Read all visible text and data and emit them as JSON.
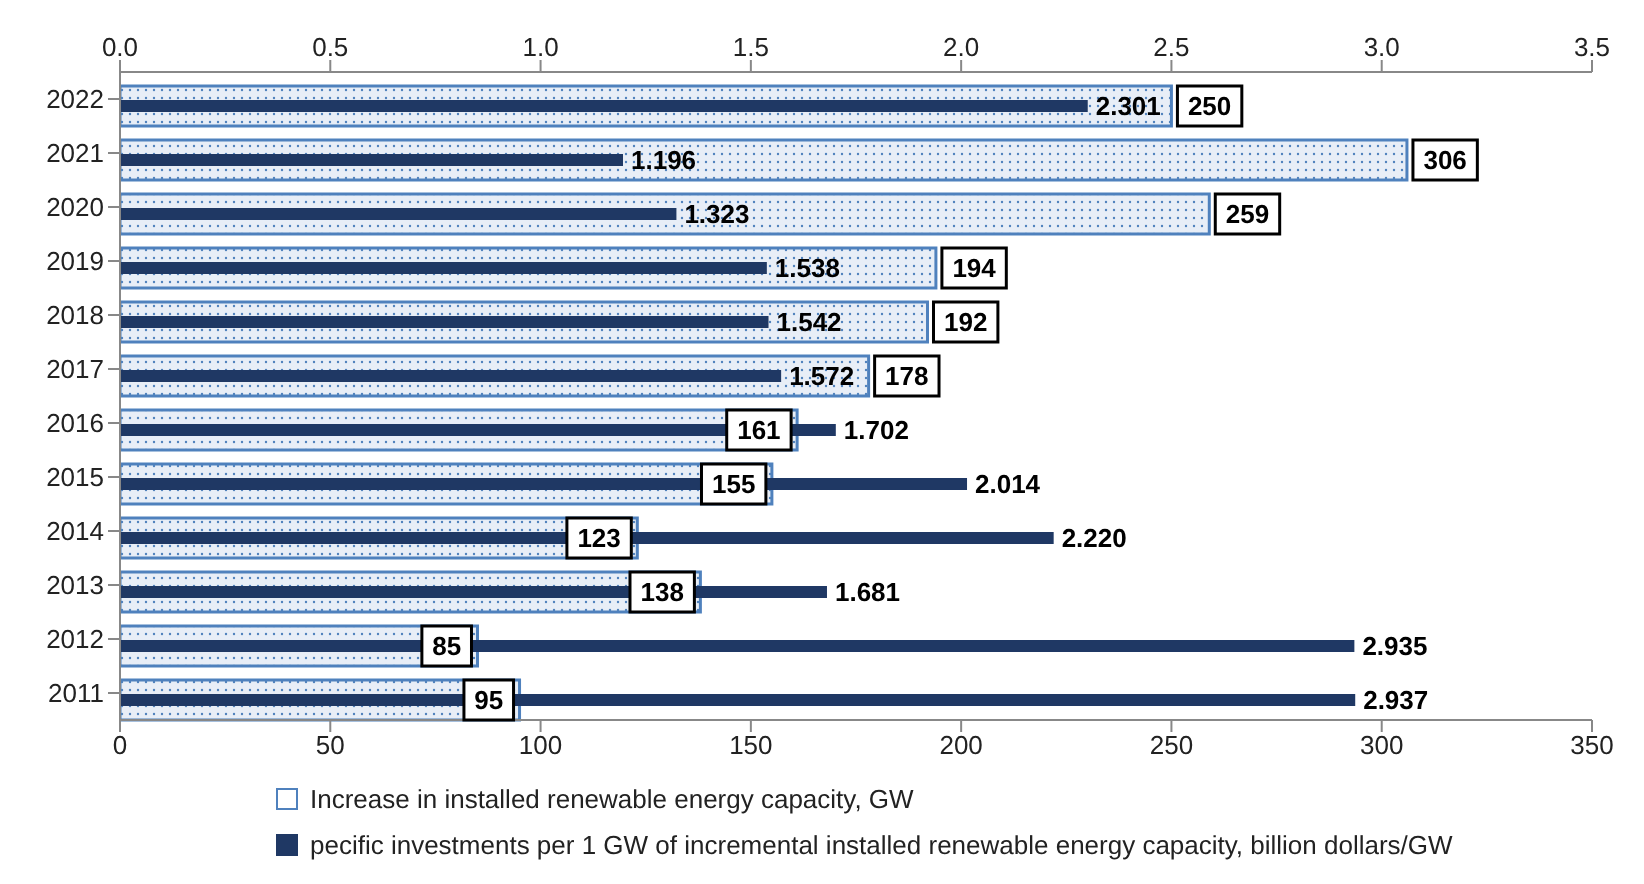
{
  "chart_data": {
    "type": "bar",
    "orientation": "horizontal",
    "categories": [
      "2022",
      "2021",
      "2020",
      "2019",
      "2018",
      "2017",
      "2016",
      "2015",
      "2014",
      "2013",
      "2012",
      "2011"
    ],
    "series": [
      {
        "name": "Increase in installed renewable energy capacity, GW",
        "color": "#4f81bd",
        "values": [
          250,
          306,
          259,
          194,
          192,
          178,
          161,
          155,
          123,
          138,
          85,
          95
        ],
        "value_labels": [
          "250",
          "306",
          "259",
          "194",
          "192",
          "178",
          "161",
          "155",
          "123",
          "138",
          "85",
          "95"
        ]
      },
      {
        "name": "pecific investments per 1 GW of incremental installed renewable energy capacity, billion dollars/GW",
        "color": "#1f3864",
        "axis": "x2",
        "values": [
          2.301,
          1.196,
          1.323,
          1.538,
          1.542,
          1.572,
          1.702,
          2.014,
          2.22,
          1.681,
          2.935,
          2.937
        ],
        "value_labels": [
          "2.301",
          "1.196",
          "1.323",
          "1.538",
          "1.542",
          "1.572",
          "1.702",
          "2.014",
          "2.220",
          "1.681",
          "2.935",
          "2.937"
        ]
      }
    ],
    "xlim": [
      0,
      350
    ],
    "xticks": [
      0,
      50,
      100,
      150,
      200,
      250,
      300,
      350
    ],
    "x2lim": [
      0,
      3.5
    ],
    "x2ticks": [
      {
        "value": 0,
        "label": "0.0"
      },
      0.5,
      {
        "value": 1,
        "label": "1.0"
      },
      1.5,
      {
        "value": 2,
        "label": "2.0"
      },
      2.5,
      {
        "value": 3,
        "label": "3.0"
      },
      3.5
    ],
    "legend": "bottom"
  }
}
